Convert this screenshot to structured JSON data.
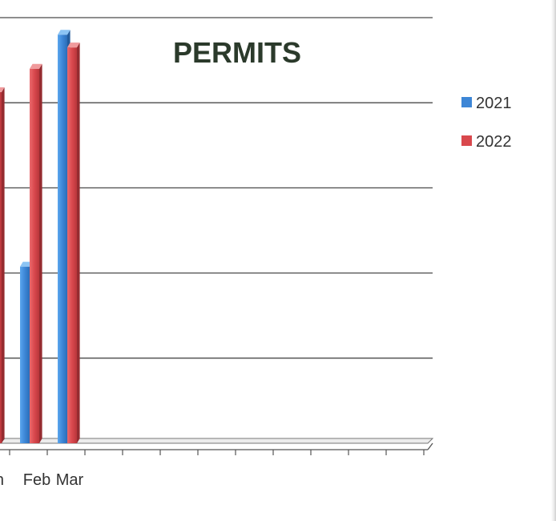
{
  "chart_data": {
    "type": "bar",
    "title": "PERMITS",
    "categories": [
      "Jan",
      "Feb",
      "Mar"
    ],
    "visible_category_labels": [
      "n",
      "Feb",
      "Mar"
    ],
    "series": [
      {
        "name": "2021",
        "values": [
          null,
          4.15,
          9.6
        ],
        "color": "#3d86d6"
      },
      {
        "name": "2022",
        "values": [
          8.25,
          8.8,
          9.3
        ],
        "color": "#d9484d"
      }
    ],
    "ylim": [
      0,
      10
    ],
    "gridlines": true,
    "legend_position": "right",
    "style": "3d-clustered-column",
    "xlabel": "",
    "ylabel": ""
  }
}
